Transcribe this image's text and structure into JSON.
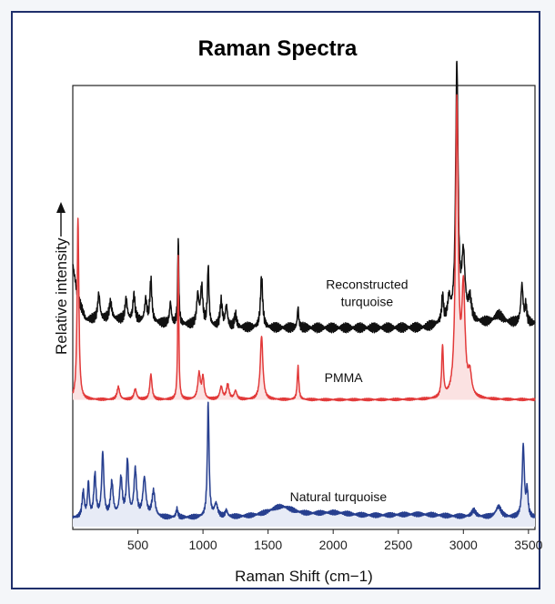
{
  "chart_data": {
    "type": "line",
    "title": "Raman Spectra",
    "xlabel": "Raman Shift (cm−1)",
    "ylabel": "Relative intensity",
    "xlim": [
      0,
      3550
    ],
    "x_ticks": [
      {
        "value": 500,
        "label": "500"
      },
      {
        "value": 1000,
        "label": "1000"
      },
      {
        "value": 1500,
        "label": "1500"
      },
      {
        "value": 2000,
        "label": "2000"
      },
      {
        "value": 2500,
        "label": "2500"
      },
      {
        "value": 3000,
        "label": "3000"
      },
      {
        "value": 3500,
        "label": "3500"
      }
    ],
    "y_ticks": false,
    "grid": false,
    "legend": "labels placed on curves",
    "series": [
      {
        "name": "Reconstructed turquoise",
        "color": "#111111",
        "fill": false,
        "baseline": 0.47,
        "noise": 0.012,
        "background": [
          [
            0,
            0.62
          ],
          [
            40,
            0.54
          ],
          [
            100,
            0.49
          ],
          [
            300,
            0.49
          ],
          [
            700,
            0.48
          ],
          [
            1200,
            0.47
          ],
          [
            2000,
            0.47
          ],
          [
            2700,
            0.47
          ],
          [
            2850,
            0.48
          ],
          [
            3100,
            0.48
          ],
          [
            3550,
            0.48
          ]
        ],
        "peaks": [
          [
            200,
            0.06,
            10
          ],
          [
            290,
            0.04,
            12
          ],
          [
            410,
            0.05,
            10
          ],
          [
            470,
            0.06,
            10
          ],
          [
            560,
            0.05,
            10
          ],
          [
            600,
            0.1,
            9
          ],
          [
            750,
            0.05,
            8
          ],
          [
            810,
            0.2,
            5
          ],
          [
            960,
            0.07,
            10
          ],
          [
            990,
            0.09,
            10
          ],
          [
            1040,
            0.14,
            7
          ],
          [
            1140,
            0.06,
            10
          ],
          [
            1180,
            0.05,
            10
          ],
          [
            1250,
            0.03,
            10
          ],
          [
            1450,
            0.12,
            10
          ],
          [
            1730,
            0.05,
            6
          ],
          [
            2840,
            0.06,
            8
          ],
          [
            2890,
            0.05,
            12
          ],
          [
            2950,
            0.61,
            11
          ],
          [
            3000,
            0.15,
            15
          ],
          [
            3050,
            0.05,
            15
          ],
          [
            3270,
            0.02,
            40
          ],
          [
            3450,
            0.09,
            10
          ],
          [
            3480,
            0.04,
            8
          ]
        ]
      },
      {
        "name": "PMMA",
        "color": "#e23a3a",
        "fill": true,
        "fillColor": "#fbe2e2",
        "baseline": 0.3,
        "noise": 0.003,
        "background": [
          [
            0,
            0.3
          ],
          [
            3550,
            0.3
          ]
        ],
        "peaks": [
          [
            40,
            0.43,
            8
          ],
          [
            350,
            0.03,
            12
          ],
          [
            480,
            0.025,
            12
          ],
          [
            600,
            0.06,
            10
          ],
          [
            810,
            0.34,
            5
          ],
          [
            970,
            0.06,
            12
          ],
          [
            1000,
            0.05,
            10
          ],
          [
            1140,
            0.03,
            12
          ],
          [
            1190,
            0.035,
            12
          ],
          [
            1250,
            0.02,
            12
          ],
          [
            1450,
            0.15,
            12
          ],
          [
            1730,
            0.08,
            7
          ],
          [
            2840,
            0.12,
            8
          ],
          [
            2950,
            0.7,
            12
          ],
          [
            3000,
            0.25,
            15
          ],
          [
            3050,
            0.05,
            15
          ]
        ]
      },
      {
        "name": "Natural turquoise",
        "color": "#273f8f",
        "fill": true,
        "fillColor": "#e7ebf6",
        "baseline": 0.0,
        "noise": 0.006,
        "background": [
          [
            0,
            0.02
          ],
          [
            3550,
            0.02
          ]
        ],
        "peaks": [
          [
            80,
            0.06,
            10
          ],
          [
            120,
            0.08,
            8
          ],
          [
            170,
            0.1,
            10
          ],
          [
            230,
            0.15,
            10
          ],
          [
            300,
            0.08,
            12
          ],
          [
            370,
            0.09,
            12
          ],
          [
            420,
            0.13,
            10
          ],
          [
            480,
            0.11,
            12
          ],
          [
            550,
            0.09,
            14
          ],
          [
            620,
            0.06,
            14
          ],
          [
            800,
            0.02,
            8
          ],
          [
            1040,
            0.27,
            8
          ],
          [
            1100,
            0.03,
            15
          ],
          [
            1180,
            0.015,
            10
          ],
          [
            1600,
            0.025,
            120
          ],
          [
            2000,
            0.01,
            200
          ],
          [
            2650,
            0.008,
            300
          ],
          [
            3080,
            0.015,
            20
          ],
          [
            3270,
            0.025,
            25
          ],
          [
            3460,
            0.17,
            10
          ],
          [
            3490,
            0.06,
            8
          ]
        ]
      }
    ],
    "annotations": [
      {
        "text": "Reconstructed",
        "x": 2260,
        "y": 0.562
      },
      {
        "text": "turquoise",
        "x": 2260,
        "y": 0.522
      },
      {
        "text": "PMMA",
        "x": 2080,
        "y": 0.342
      },
      {
        "text": "Natural turquoise",
        "x": 2040,
        "y": 0.06
      }
    ]
  }
}
